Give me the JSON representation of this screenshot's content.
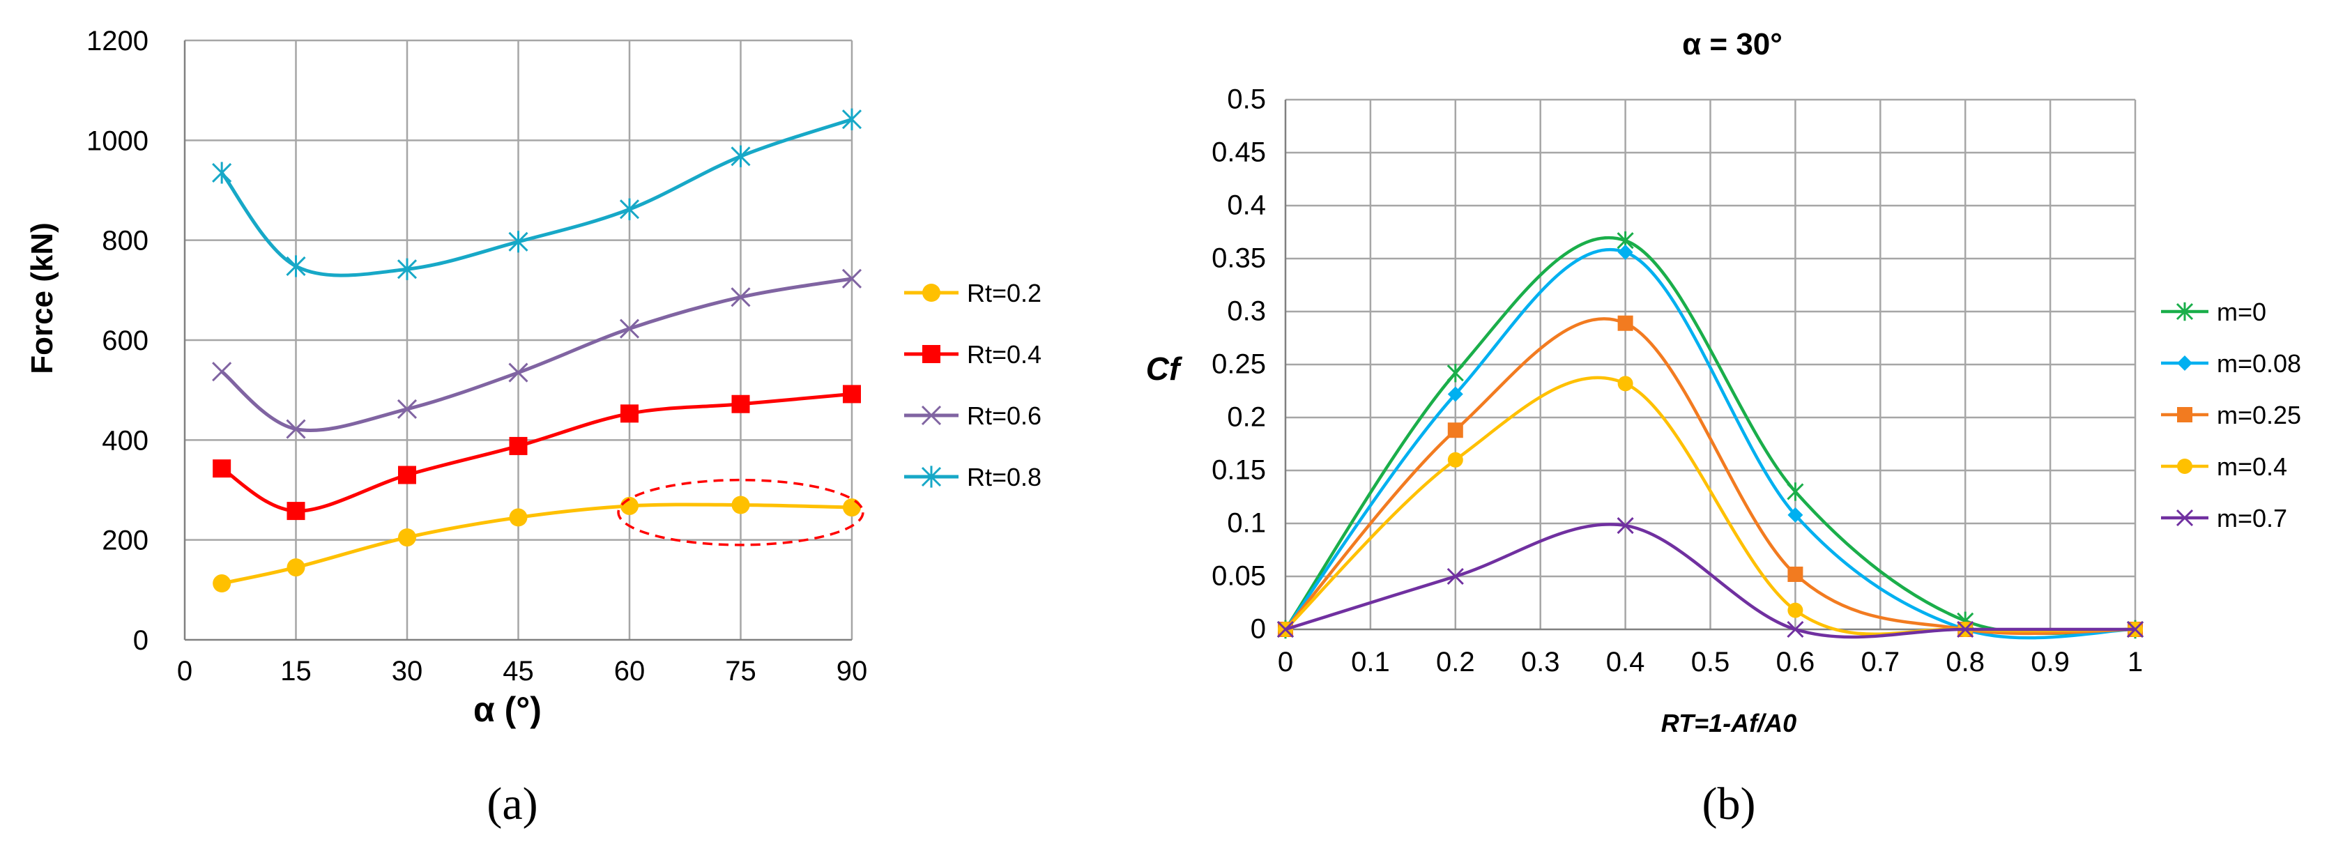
{
  "figure": {
    "panel_a_label": "(a)",
    "panel_b_label": "(b)"
  },
  "chart_data": [
    {
      "id": "a",
      "type": "line",
      "title": "",
      "xlabel": "α (°)",
      "ylabel": "Force (kN)",
      "xlim": [
        0,
        90
      ],
      "ylim": [
        0,
        1200
      ],
      "xticks": [
        0,
        15,
        30,
        45,
        60,
        75,
        90
      ],
      "yticks": [
        0,
        200,
        400,
        600,
        800,
        1000,
        1200
      ],
      "xtick_labels": [
        "0",
        "15",
        "30",
        "45",
        "60",
        "75",
        "90"
      ],
      "ytick_labels": [
        "0",
        "200",
        "400",
        "600",
        "800",
        "1000",
        "1200"
      ],
      "grid": true,
      "legend_position": "right",
      "series": [
        {
          "name": "Rt=0.2",
          "color": "#ffc000",
          "marker": "circle",
          "x": [
            5,
            15,
            30,
            45,
            60,
            75,
            90
          ],
          "values": [
            113,
            145,
            205,
            245,
            268,
            270,
            265
          ]
        },
        {
          "name": "Rt=0.4",
          "color": "#ff0000",
          "marker": "square",
          "x": [
            5,
            15,
            30,
            45,
            60,
            75,
            90
          ],
          "values": [
            343,
            258,
            330,
            388,
            453,
            472,
            492
          ]
        },
        {
          "name": "Rt=0.6",
          "color": "#8064a2",
          "marker": "x",
          "x": [
            5,
            15,
            30,
            45,
            60,
            75,
            90
          ],
          "values": [
            537,
            422,
            462,
            535,
            623,
            686,
            723
          ]
        },
        {
          "name": "Rt=0.8",
          "color": "#17a8c7",
          "marker": "star",
          "x": [
            5,
            15,
            30,
            45,
            60,
            75,
            90
          ],
          "values": [
            935,
            748,
            742,
            797,
            862,
            968,
            1042
          ]
        }
      ],
      "annotation": {
        "type": "dashed-ellipse",
        "color": "#ff0000",
        "x_center": 75,
        "y_center": 255,
        "x_radius": 16.5,
        "y_radius": 65
      }
    },
    {
      "id": "b",
      "type": "line",
      "title": "α = 30°",
      "xlabel": "RT=1-Af/A0",
      "ylabel": "Cf",
      "xlim": [
        0,
        1
      ],
      "ylim": [
        0,
        0.5
      ],
      "xticks": [
        0,
        0.1,
        0.2,
        0.3,
        0.4,
        0.5,
        0.6,
        0.7,
        0.8,
        0.9,
        1
      ],
      "yticks": [
        0,
        0.05,
        0.1,
        0.15,
        0.2,
        0.25,
        0.3,
        0.35,
        0.4,
        0.45,
        0.5
      ],
      "xtick_labels": [
        "0",
        "0.1",
        "0.2",
        "0.3",
        "0.4",
        "0.5",
        "0.6",
        "0.7",
        "0.8",
        "0.9",
        "1"
      ],
      "ytick_labels": [
        "0",
        "0.05",
        "0.1",
        "0.15",
        "0.2",
        "0.25",
        "0.3",
        "0.35",
        "0.4",
        "0.45",
        "0.5"
      ],
      "grid": true,
      "legend_position": "right",
      "series": [
        {
          "name": "m=0",
          "color": "#1aae4a",
          "marker": "star",
          "x": [
            0,
            0.2,
            0.4,
            0.6,
            0.8,
            1
          ],
          "values": [
            0,
            0.242,
            0.367,
            0.13,
            0.008,
            0
          ]
        },
        {
          "name": "m=0.08",
          "color": "#00b0f0",
          "marker": "diamond",
          "x": [
            0,
            0.2,
            0.4,
            0.6,
            0.8,
            1
          ],
          "values": [
            0,
            0.222,
            0.356,
            0.108,
            0,
            0
          ]
        },
        {
          "name": "m=0.25",
          "color": "#f27b20",
          "marker": "square",
          "x": [
            0,
            0.2,
            0.4,
            0.6,
            0.8,
            1
          ],
          "values": [
            0,
            0.188,
            0.289,
            0.052,
            0,
            0
          ]
        },
        {
          "name": "m=0.4",
          "color": "#ffc000",
          "marker": "circle",
          "x": [
            0,
            0.2,
            0.4,
            0.6,
            0.8,
            1
          ],
          "values": [
            0,
            0.16,
            0.232,
            0.018,
            0,
            0
          ]
        },
        {
          "name": "m=0.7",
          "color": "#7030a0",
          "marker": "x",
          "x": [
            0,
            0.2,
            0.4,
            0.6,
            0.8,
            1
          ],
          "values": [
            0,
            0.05,
            0.098,
            0,
            0,
            0
          ]
        }
      ]
    }
  ]
}
